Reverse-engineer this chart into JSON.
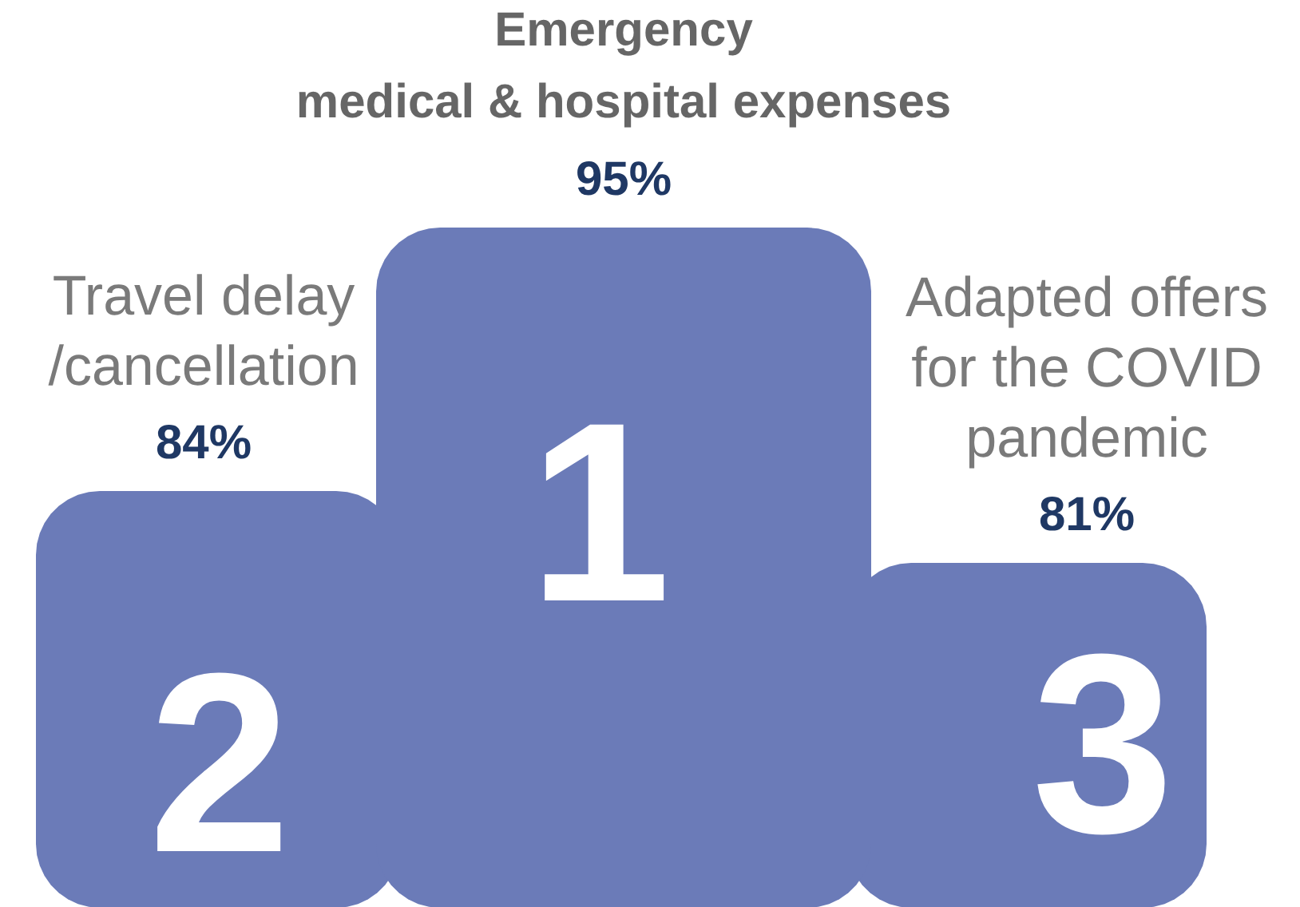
{
  "chart_data": {
    "type": "other",
    "categories": [
      "Travel delay\n/cancellation",
      "Emergency\nmedical & hospital expenses",
      "Adapted offers\nfor the COVID\npandemic"
    ],
    "values": [
      84,
      95,
      81
    ],
    "value_labels": [
      "84%",
      "95%",
      "81%"
    ],
    "color": "#6b7bb8",
    "annotations": [
      "2",
      "1",
      "3"
    ]
  }
}
